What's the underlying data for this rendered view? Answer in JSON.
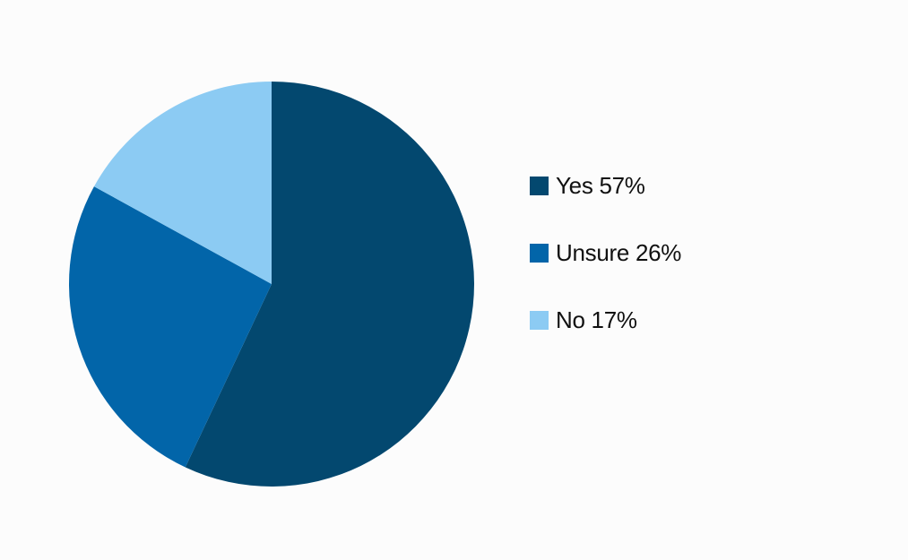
{
  "chart_data": {
    "type": "pie",
    "categories": [
      "Yes",
      "Unsure",
      "No"
    ],
    "values": [
      57,
      26,
      17
    ],
    "unit": "%",
    "colors": [
      "#03486f",
      "#0265a9",
      "#8ccbf3"
    ],
    "start_angle_deg": 0,
    "direction": "clockwise",
    "legend_position": "right",
    "legend": [
      {
        "label": "Yes 57%",
        "color": "#03486f"
      },
      {
        "label": "Unsure 26%",
        "color": "#0265a9"
      },
      {
        "label": "No 17%",
        "color": "#8ccbf3"
      }
    ]
  }
}
